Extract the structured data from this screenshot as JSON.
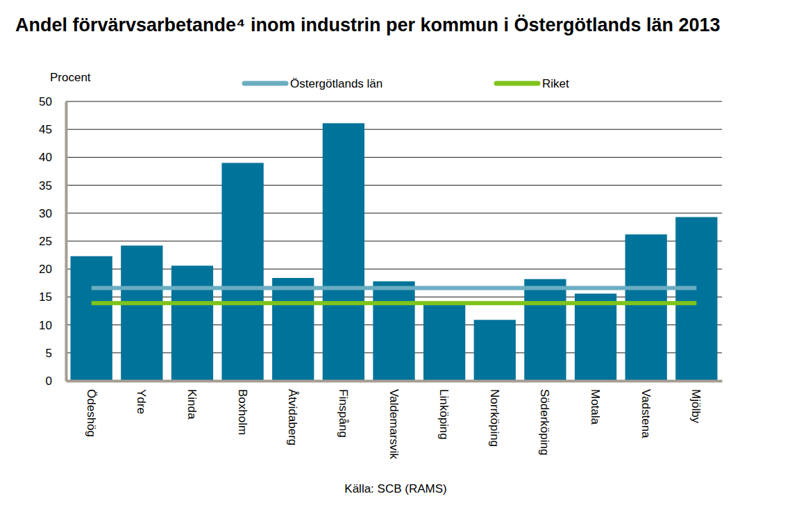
{
  "chart_data": {
    "type": "bar",
    "title": "Andel förvärvsarbetande⁴ inom industrin per kommun i Östergötlands län 2013",
    "ylabel": "Procent",
    "source": "Källa: SCB (RAMS)",
    "categories": [
      "Ödeshög",
      "Ydre",
      "Kinda",
      "Boxholm",
      "Åtvidaberg",
      "Finspång",
      "Valdemarsvik",
      "Linköping",
      "Norrköping",
      "Söderköping",
      "Motala",
      "Vadstena",
      "Mjölby"
    ],
    "values": [
      22.3,
      24.2,
      20.6,
      39.0,
      18.4,
      46.1,
      17.8,
      14.0,
      10.9,
      18.2,
      15.6,
      26.2,
      29.3
    ],
    "color": "#00739a",
    "series": [
      {
        "name": "Östergötlands län",
        "type": "line",
        "color": "#6aadc1",
        "values": [
          16.6,
          16.6,
          16.6,
          16.6,
          16.6,
          16.6,
          16.6,
          16.6,
          16.6,
          16.6,
          16.6,
          16.6,
          16.6
        ]
      },
      {
        "name": "Riket",
        "type": "line",
        "color": "#7fc31c",
        "values": [
          13.9,
          13.9,
          13.9,
          13.9,
          13.9,
          13.9,
          13.9,
          13.9,
          13.9,
          13.9,
          13.9,
          13.9,
          13.9
        ]
      }
    ],
    "ylim": [
      0,
      50
    ],
    "yticks": [
      0,
      5,
      10,
      15,
      20,
      25,
      30,
      35,
      40,
      45,
      50
    ],
    "grid": true,
    "legend": "top"
  }
}
